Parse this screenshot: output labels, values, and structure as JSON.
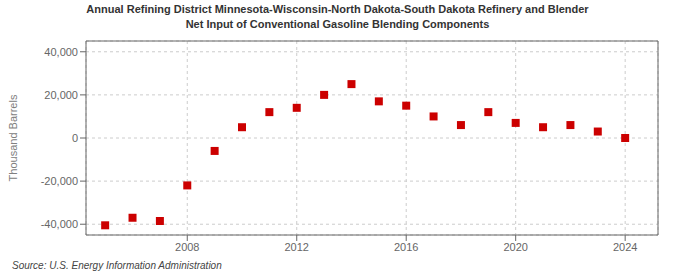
{
  "chart_data": {
    "type": "scatter",
    "title": "Annual Refining District Minnesota-Wisconsin-North Dakota-South Dakota Refinery and Blender\nNet Input of Conventional Gasoline Blending Components",
    "ylabel": "Thousand Barrels",
    "source": "Source: U.S. Energy Information Administration",
    "x": [
      2005,
      2006,
      2007,
      2008,
      2009,
      2010,
      2011,
      2012,
      2013,
      2014,
      2015,
      2016,
      2017,
      2018,
      2019,
      2020,
      2021,
      2022,
      2023,
      2024
    ],
    "values": [
      -40500,
      -37000,
      -38500,
      -22000,
      -6000,
      5000,
      12000,
      14000,
      20000,
      25000,
      17000,
      15000,
      10000,
      6000,
      12000,
      7000,
      5000,
      6000,
      3000,
      0
    ],
    "color": "#cc0000",
    "marker": "square",
    "xlim": [
      2004.3,
      2025.2
    ],
    "xticks": [
      2008,
      2012,
      2016,
      2020,
      2024
    ],
    "ylim": [
      -45000,
      45000
    ],
    "yticks": [
      {
        "value": -40000,
        "label": "-40,000"
      },
      {
        "value": -20000,
        "label": "-20,000"
      },
      0,
      {
        "value": 20000,
        "label": "20,000"
      },
      {
        "value": 40000,
        "label": "40,000"
      }
    ],
    "grid": true
  }
}
